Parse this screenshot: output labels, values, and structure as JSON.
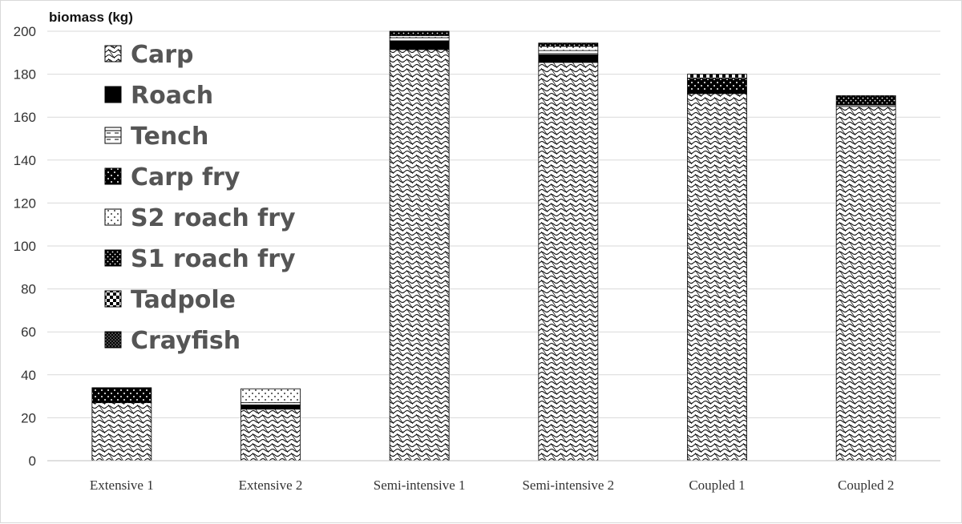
{
  "chart_data": {
    "type": "bar",
    "stacked": true,
    "ylabel": "biomass (kg)",
    "ylim": [
      0,
      200
    ],
    "yticks": [
      0,
      20,
      40,
      60,
      80,
      100,
      120,
      140,
      160,
      180,
      200
    ],
    "grid": true,
    "legend_position": "top-left",
    "categories": [
      "Extensive 1",
      "Extensive 2",
      "Semi-intensive 1",
      "Semi-intensive 2",
      "Coupled 1",
      "Coupled 2"
    ],
    "series": [
      {
        "name": "Carp",
        "pattern": "wave",
        "values": [
          27,
          24,
          191.5,
          185.5,
          171,
          165
        ]
      },
      {
        "name": "Roach",
        "pattern": "solid-black",
        "values": [
          0,
          2,
          4,
          3.5,
          1,
          0
        ]
      },
      {
        "name": "Tench",
        "pattern": "dash",
        "values": [
          0,
          1,
          1.5,
          2,
          0,
          1
        ]
      },
      {
        "name": "Carp fry",
        "pattern": "black-dots",
        "values": [
          7,
          0,
          0,
          0,
          6,
          0
        ]
      },
      {
        "name": "S2 roach fry",
        "pattern": "light-dots",
        "values": [
          0,
          6.5,
          1,
          2,
          0,
          0
        ]
      },
      {
        "name": "S1 roach fry",
        "pattern": "black-dots2",
        "values": [
          0,
          0,
          2,
          1.5,
          0,
          4
        ]
      },
      {
        "name": "Tadpole",
        "pattern": "checker",
        "values": [
          0,
          0,
          0,
          0,
          2,
          0
        ]
      },
      {
        "name": "Crayfish",
        "pattern": "dense",
        "values": [
          0,
          0,
          0,
          0,
          0,
          0
        ]
      }
    ]
  }
}
